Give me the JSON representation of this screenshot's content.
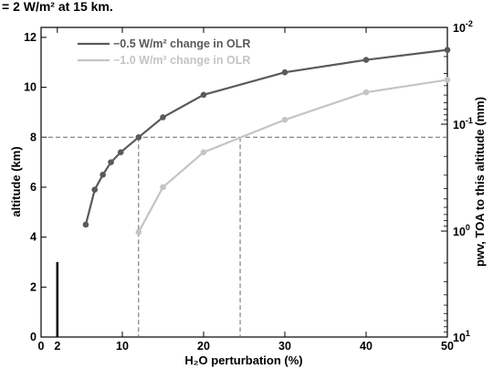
{
  "chart_data": {
    "type": "line",
    "title_fragment": "= 2 W/m² at 15 km.",
    "xlabel": "H₂O perturbation (%)",
    "ylabel": "altitude (km)",
    "ylabel_right": "pwv, TOA to this altitude (mm)",
    "xlim": [
      0,
      50
    ],
    "ylim": [
      0,
      12.4
    ],
    "x_ticks": [
      0,
      2,
      10,
      20,
      30,
      40,
      50
    ],
    "y_ticks": [
      0,
      2,
      4,
      6,
      8,
      10,
      12
    ],
    "right_axis": {
      "scale": "log",
      "ticks": [
        {
          "mantissa": "10",
          "exp": "-2"
        },
        {
          "mantissa": "10",
          "exp": "-1"
        },
        {
          "mantissa": "10",
          "exp": "0"
        },
        {
          "mantissa": "10",
          "exp": "1"
        }
      ]
    },
    "series": [
      {
        "name": "−0.5 W/m² change in OLR",
        "color": "#5a5a5a",
        "x": [
          5.5,
          6.6,
          7.6,
          8.6,
          9.8,
          12.0,
          15.0,
          20.0,
          30.0,
          40.0,
          50.0
        ],
        "y": [
          4.5,
          5.9,
          6.5,
          7.0,
          7.4,
          8.0,
          8.8,
          9.7,
          10.6,
          11.1,
          11.5
        ]
      },
      {
        "name": "−1.0 W/m² change in OLR",
        "color": "#c4c4c4",
        "x": [
          12.0,
          15.0,
          20.0,
          30.0,
          40.0,
          50.0
        ],
        "y": [
          4.2,
          6.0,
          7.4,
          8.7,
          9.8,
          10.3
        ]
      }
    ],
    "reference_lines": {
      "horizontal_y": 8,
      "vertical_x": [
        12.0,
        24.5
      ],
      "bar_at_x": 2,
      "bar_top_y": 3
    }
  }
}
